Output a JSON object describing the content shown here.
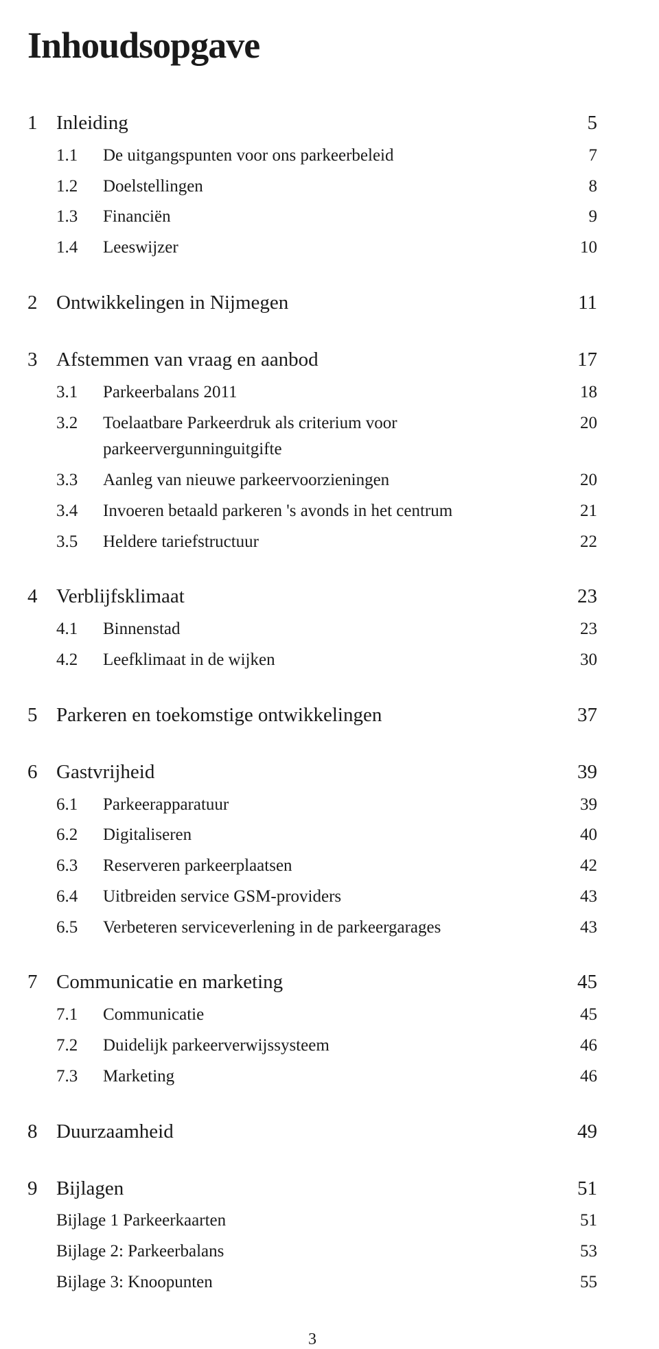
{
  "title": "Inhoudsopgave",
  "page_number": "3",
  "colors": {
    "background": "#ffffff",
    "text": "#1a1a1a"
  },
  "typography": {
    "title_fontsize": 54,
    "heading_fontsize": 29,
    "item_fontsize": 25,
    "font_family": "Georgia, serif"
  },
  "sections": [
    {
      "num": "1",
      "label": "Inleiding",
      "page": "5",
      "items": [
        {
          "num": "1.1",
          "label": "De uitgangspunten voor ons parkeerbeleid",
          "page": "7"
        },
        {
          "num": "1.2",
          "label": "Doelstellingen",
          "page": "8"
        },
        {
          "num": "1.3",
          "label": "Financiën",
          "page": "9"
        },
        {
          "num": "1.4",
          "label": "Leeswijzer",
          "page": "10"
        }
      ]
    },
    {
      "num": "2",
      "label": "Ontwikkelingen in Nijmegen",
      "page": "11",
      "items": []
    },
    {
      "num": "3",
      "label": "Afstemmen van vraag en aanbod",
      "page": "17",
      "items": [
        {
          "num": "3.1",
          "label": "Parkeerbalans 2011",
          "page": "18"
        },
        {
          "num": "3.2",
          "label": "Toelaatbare Parkeerdruk als criterium voor parkeervergunninguitgifte",
          "page": "20"
        },
        {
          "num": "3.3",
          "label": "Aanleg van nieuwe parkeervoorzieningen",
          "page": "20"
        },
        {
          "num": "3.4",
          "label": "Invoeren betaald parkeren 's avonds in het centrum",
          "page": "21"
        },
        {
          "num": "3.5",
          "label": "Heldere tariefstructuur",
          "page": "22"
        }
      ]
    },
    {
      "num": "4",
      "label": "Verblijfsklimaat",
      "page": "23",
      "items": [
        {
          "num": "4.1",
          "label": "Binnenstad",
          "page": "23"
        },
        {
          "num": "4.2",
          "label": "Leefklimaat in de wijken",
          "page": "30"
        }
      ]
    },
    {
      "num": "5",
      "label": "Parkeren en toekomstige ontwikkelingen",
      "page": "37",
      "items": []
    },
    {
      "num": "6",
      "label": "Gastvrijheid",
      "page": "39",
      "items": [
        {
          "num": "6.1",
          "label": "Parkeerapparatuur",
          "page": "39"
        },
        {
          "num": "6.2",
          "label": "Digitaliseren",
          "page": "40"
        },
        {
          "num": "6.3",
          "label": "Reserveren parkeerplaatsen",
          "page": "42"
        },
        {
          "num": "6.4",
          "label": "Uitbreiden service GSM-providers",
          "page": "43"
        },
        {
          "num": "6.5",
          "label": "Verbeteren serviceverlening in de parkeergarages",
          "page": "43"
        }
      ]
    },
    {
      "num": "7",
      "label": "Communicatie en marketing",
      "page": "45",
      "items": [
        {
          "num": "7.1",
          "label": "Communicatie",
          "page": "45"
        },
        {
          "num": "7.2",
          "label": "Duidelijk parkeerverwijssysteem",
          "page": "46"
        },
        {
          "num": "7.3",
          "label": "Marketing",
          "page": "46"
        }
      ]
    },
    {
      "num": "8",
      "label": "Duurzaamheid",
      "page": "49",
      "items": []
    },
    {
      "num": "9",
      "label": "Bijlagen",
      "page": "51",
      "items": [],
      "bijlagen": [
        {
          "label": "Bijlage 1 Parkeerkaarten",
          "page": "51"
        },
        {
          "label": "Bijlage 2: Parkeerbalans",
          "page": "53"
        },
        {
          "label": "Bijlage 3: Knoopunten",
          "page": "55"
        }
      ]
    }
  ]
}
